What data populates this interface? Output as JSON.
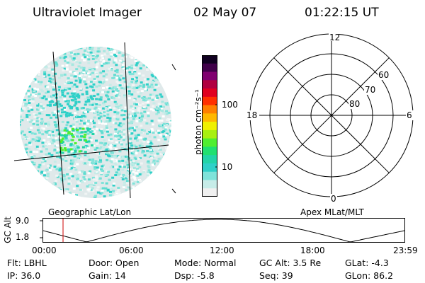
{
  "header": {
    "instrument": "Ultraviolet Imager",
    "date": "02 May 07",
    "time": "01:22:15 UT"
  },
  "image_panel": {
    "projection_label": "Geographic Lat/Lon"
  },
  "colorbar": {
    "unit_label": "photon cm⁻²s⁻¹",
    "ticks": [
      "100",
      "10"
    ],
    "colors": [
      "#f0f0f0",
      "#c6ece8",
      "#7fe3da",
      "#2fd0c8",
      "#22d4a8",
      "#20e070",
      "#50ee30",
      "#a8f010",
      "#f0f000",
      "#ffb800",
      "#ff8000",
      "#ff3000",
      "#e00020",
      "#b00040",
      "#800070",
      "#40004a",
      "#100020"
    ]
  },
  "polar_plot": {
    "projection_label": "Apex MLat/MLT",
    "mlt_labels": [
      "12",
      "18",
      "6",
      "0"
    ],
    "lat_labels": [
      "60",
      "70",
      "80"
    ]
  },
  "timeline": {
    "ylabel": "GC Alt",
    "y_ticks": [
      "9.0",
      "1.8"
    ],
    "x_ticks": [
      "00:00",
      "06:00",
      "12:00",
      "18:00",
      "23:59"
    ]
  },
  "info": {
    "row1": [
      "Flt: LBHL",
      "Door: Open",
      "Mode: Normal",
      "GC Alt: 3.5 Re",
      "GLat:  -4.3"
    ],
    "row2": [
      "IP: 36.0",
      "Gain: 14",
      "Dsp:   -5.8",
      "Seq: 39",
      "GLon:  86.2"
    ]
  }
}
